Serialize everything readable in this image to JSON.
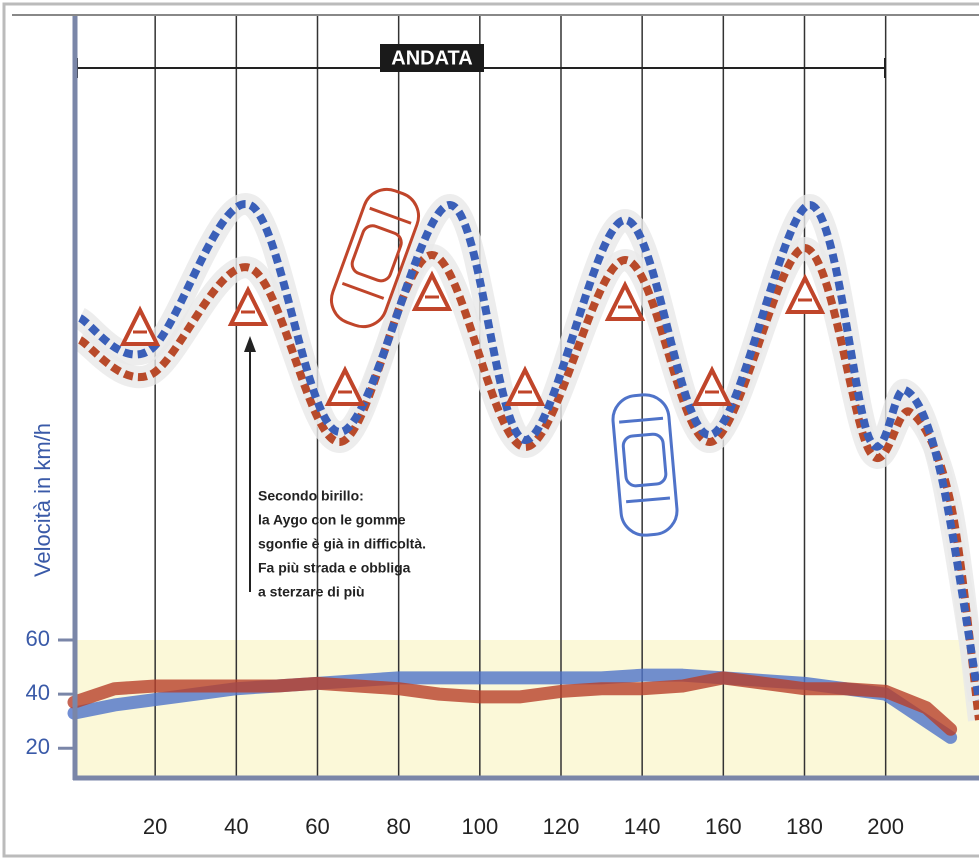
{
  "chart_data": {
    "type": "line",
    "title": "ANDATA",
    "y_label": "Velocità in km/h",
    "annotation": [
      "Secondo birillo:",
      "la Aygo con le gomme",
      "sgonfie è già in difficoltà.",
      "Fa più strada e obbliga",
      "a sterzare di più"
    ],
    "x": [
      0,
      10,
      20,
      30,
      40,
      50,
      60,
      70,
      80,
      90,
      100,
      110,
      120,
      130,
      140,
      150,
      160,
      170,
      180,
      190,
      200,
      210,
      216
    ],
    "series": [
      {
        "color": "#4f73c9",
        "values": [
          33,
          36,
          38,
          40,
          42,
          43,
          44,
          45,
          46,
          46,
          46,
          46,
          46,
          46,
          47,
          47,
          46,
          45,
          44,
          42,
          40,
          30,
          24
        ]
      },
      {
        "color": "#b8402a",
        "values": [
          37,
          42,
          43,
          43,
          43,
          43,
          44,
          43,
          42,
          40,
          39,
          39,
          41,
          42,
          42,
          43,
          46,
          44,
          42,
          42,
          41,
          35,
          27
        ]
      }
    ],
    "xlim": [
      0,
      223
    ],
    "xticks": [
      20,
      40,
      60,
      80,
      100,
      120,
      140,
      160,
      180,
      200
    ],
    "ylim": [
      9,
      291
    ],
    "yticks": [
      20,
      40,
      60
    ],
    "grid": true
  }
}
